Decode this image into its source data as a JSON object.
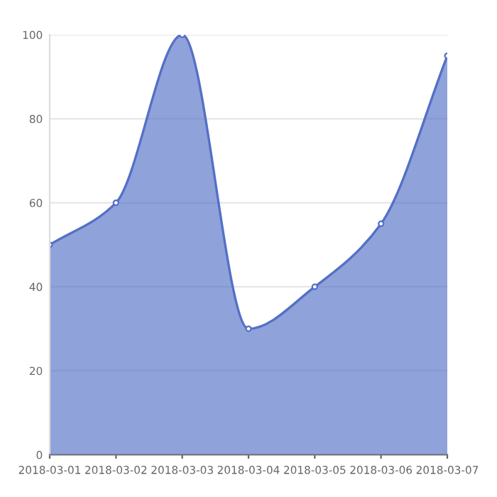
{
  "chart_data": {
    "type": "area",
    "categories": [
      "2018-03-01",
      "2018-03-02",
      "2018-03-03",
      "2018-03-04",
      "2018-03-05",
      "2018-03-06",
      "2018-03-07"
    ],
    "series": [
      {
        "color": "#5470c6",
        "values": [
          50,
          60,
          100,
          30,
          40,
          55,
          95
        ]
      }
    ],
    "ylim": [
      0,
      100
    ],
    "yticks": [
      0,
      20,
      40,
      60,
      80,
      100
    ],
    "grid": "y",
    "marker": "circle",
    "line_style": "solid"
  }
}
